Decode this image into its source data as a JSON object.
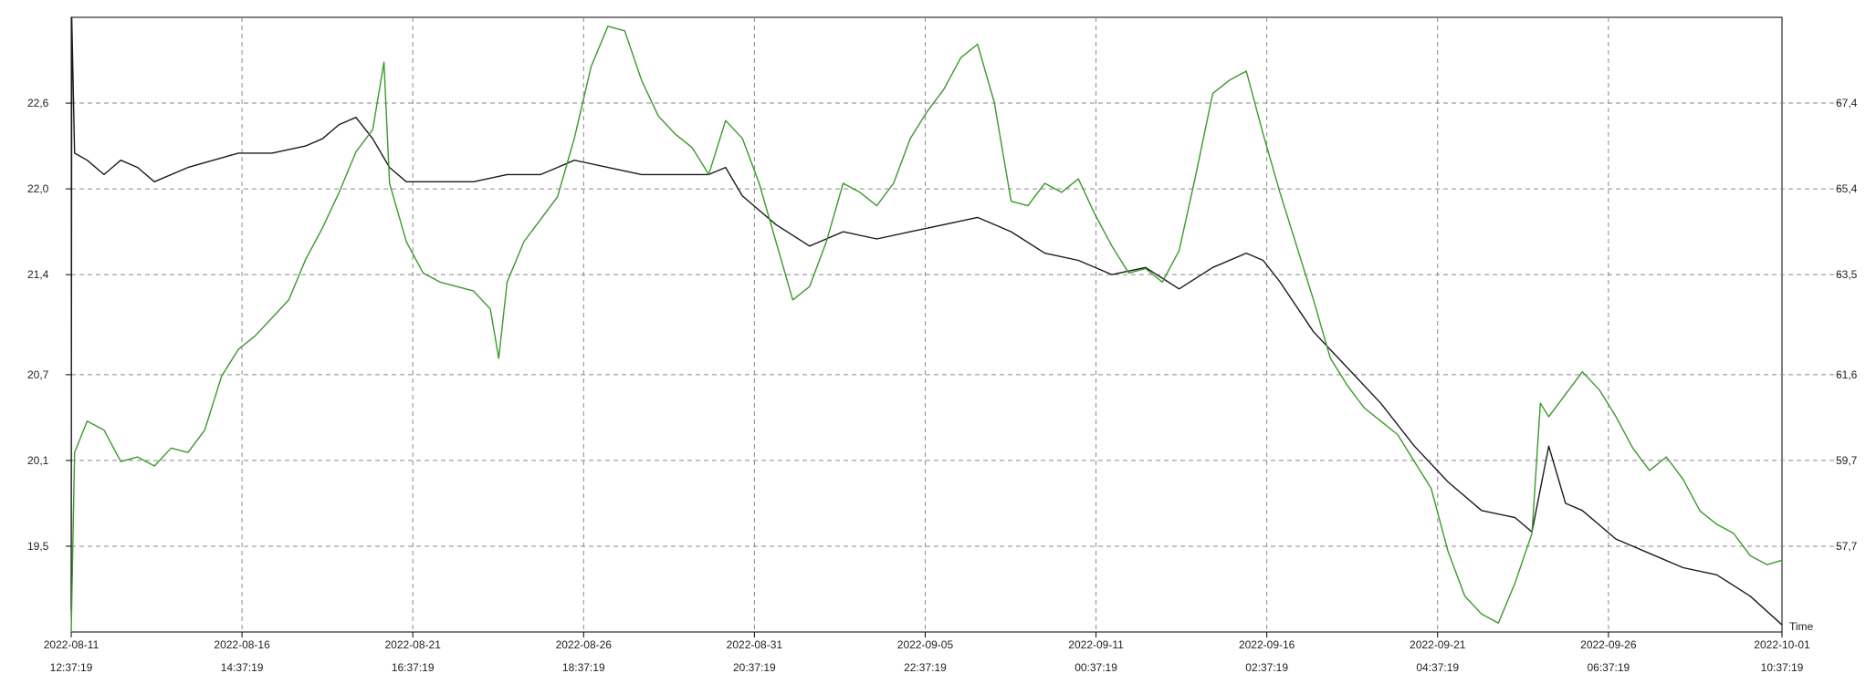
{
  "chart_data": {
    "type": "line",
    "xlabel": "Time",
    "x_ticks": [
      {
        "date": "2022-08-11",
        "time": "12:37:19"
      },
      {
        "date": "2022-08-16",
        "time": "14:37:19"
      },
      {
        "date": "2022-08-21",
        "time": "16:37:19"
      },
      {
        "date": "2022-08-26",
        "time": "18:37:19"
      },
      {
        "date": "2022-08-31",
        "time": "20:37:19"
      },
      {
        "date": "2022-09-05",
        "time": "22:37:19"
      },
      {
        "date": "2022-09-11",
        "time": "00:37:19"
      },
      {
        "date": "2022-09-16",
        "time": "02:37:19"
      },
      {
        "date": "2022-09-21",
        "time": "04:37:19"
      },
      {
        "date": "2022-09-26",
        "time": "06:37:19"
      },
      {
        "date": "2022-10-01",
        "time": "10:37:19"
      }
    ],
    "xlim": [
      "2022-08-11 12:37",
      "2022-10-01 10:37"
    ],
    "y_left_ticks": [
      "19,5",
      "20,1",
      "20,7",
      "21,4",
      "22,0",
      "22,6"
    ],
    "y_left_lim": [
      18.9,
      23.2
    ],
    "y_right_ticks": [
      "57,7",
      "59,7",
      "61,6",
      "63,5",
      "65,4",
      "67,4"
    ],
    "y_right_lim": [
      55.8,
      69.5
    ],
    "grid": true,
    "series": [
      {
        "axis": "left",
        "color": "#1a1a1a",
        "points": [
          [
            "2022-08-11 12:37",
            19.05
          ],
          [
            "2022-08-11 13:00",
            23.2
          ],
          [
            "2022-08-11 15:00",
            22.25
          ],
          [
            "2022-08-12 00:00",
            22.2
          ],
          [
            "2022-08-12 12:00",
            22.1
          ],
          [
            "2022-08-13 00:00",
            22.2
          ],
          [
            "2022-08-13 12:00",
            22.15
          ],
          [
            "2022-08-14 00:00",
            22.05
          ],
          [
            "2022-08-15 00:00",
            22.15
          ],
          [
            "2022-08-16 12:00",
            22.25
          ],
          [
            "2022-08-17 12:00",
            22.25
          ],
          [
            "2022-08-18 12:00",
            22.3
          ],
          [
            "2022-08-19 00:00",
            22.35
          ],
          [
            "2022-08-19 12:00",
            22.45
          ],
          [
            "2022-08-20 00:00",
            22.5
          ],
          [
            "2022-08-20 12:00",
            22.35
          ],
          [
            "2022-08-21 00:00",
            22.15
          ],
          [
            "2022-08-21 12:00",
            22.05
          ],
          [
            "2022-08-22 12:00",
            22.05
          ],
          [
            "2022-08-23 12:00",
            22.05
          ],
          [
            "2022-08-24 12:00",
            22.1
          ],
          [
            "2022-08-25 12:00",
            22.1
          ],
          [
            "2022-08-26 00:00",
            22.15
          ],
          [
            "2022-08-26 12:00",
            22.2
          ],
          [
            "2022-08-27 12:00",
            22.15
          ],
          [
            "2022-08-28 12:00",
            22.1
          ],
          [
            "2022-08-29 12:00",
            22.1
          ],
          [
            "2022-08-30 12:00",
            22.1
          ],
          [
            "2022-08-31 00:00",
            22.15
          ],
          [
            "2022-08-31 12:00",
            21.95
          ],
          [
            "2022-09-01 12:00",
            21.75
          ],
          [
            "2022-09-02 12:00",
            21.6
          ],
          [
            "2022-09-03 12:00",
            21.7
          ],
          [
            "2022-09-04 12:00",
            21.65
          ],
          [
            "2022-09-05 12:00",
            21.7
          ],
          [
            "2022-09-06 12:00",
            21.75
          ],
          [
            "2022-09-07 12:00",
            21.8
          ],
          [
            "2022-09-08 12:00",
            21.7
          ],
          [
            "2022-09-09 12:00",
            21.55
          ],
          [
            "2022-09-10 12:00",
            21.5
          ],
          [
            "2022-09-11 12:00",
            21.4
          ],
          [
            "2022-09-12 12:00",
            21.45
          ],
          [
            "2022-09-13 12:00",
            21.3
          ],
          [
            "2022-09-14 12:00",
            21.45
          ],
          [
            "2022-09-15 12:00",
            21.55
          ],
          [
            "2022-09-16 00:00",
            21.5
          ],
          [
            "2022-09-16 12:00",
            21.35
          ],
          [
            "2022-09-17 12:00",
            21.0
          ],
          [
            "2022-09-18 12:00",
            20.75
          ],
          [
            "2022-09-19 12:00",
            20.5
          ],
          [
            "2022-09-20 12:00",
            20.2
          ],
          [
            "2022-09-21 12:00",
            19.95
          ],
          [
            "2022-09-22 12:00",
            19.75
          ],
          [
            "2022-09-23 12:00",
            19.7
          ],
          [
            "2022-09-24 00:00",
            19.6
          ],
          [
            "2022-09-24 12:00",
            20.2
          ],
          [
            "2022-09-25 00:00",
            19.8
          ],
          [
            "2022-09-25 12:00",
            19.75
          ],
          [
            "2022-09-26 12:00",
            19.55
          ],
          [
            "2022-09-27 12:00",
            19.45
          ],
          [
            "2022-09-28 12:00",
            19.35
          ],
          [
            "2022-09-29 12:00",
            19.3
          ],
          [
            "2022-09-30 12:00",
            19.15
          ],
          [
            "2022-10-01 10:37",
            18.95
          ]
        ]
      },
      {
        "axis": "right",
        "color": "#3a9a2a",
        "points": [
          [
            "2022-08-11 12:37",
            55.8
          ],
          [
            "2022-08-11 15:00",
            59.8
          ],
          [
            "2022-08-12 00:00",
            60.5
          ],
          [
            "2022-08-12 12:00",
            60.3
          ],
          [
            "2022-08-13 00:00",
            59.6
          ],
          [
            "2022-08-13 12:00",
            59.7
          ],
          [
            "2022-08-14 00:00",
            59.5
          ],
          [
            "2022-08-14 12:00",
            59.9
          ],
          [
            "2022-08-15 00:00",
            59.8
          ],
          [
            "2022-08-15 12:00",
            60.3
          ],
          [
            "2022-08-16 00:00",
            61.5
          ],
          [
            "2022-08-16 12:00",
            62.1
          ],
          [
            "2022-08-17 00:00",
            62.4
          ],
          [
            "2022-08-17 12:00",
            62.8
          ],
          [
            "2022-08-18 00:00",
            63.2
          ],
          [
            "2022-08-18 12:00",
            64.1
          ],
          [
            "2022-08-19 00:00",
            64.8
          ],
          [
            "2022-08-19 12:00",
            65.6
          ],
          [
            "2022-08-20 00:00",
            66.5
          ],
          [
            "2022-08-20 12:00",
            67.0
          ],
          [
            "2022-08-20 20:00",
            68.5
          ],
          [
            "2022-08-21 00:00",
            65.8
          ],
          [
            "2022-08-21 12:00",
            64.5
          ],
          [
            "2022-08-22 00:00",
            63.8
          ],
          [
            "2022-08-22 12:00",
            63.6
          ],
          [
            "2022-08-23 00:00",
            63.5
          ],
          [
            "2022-08-23 12:00",
            63.4
          ],
          [
            "2022-08-24 00:00",
            63.0
          ],
          [
            "2022-08-24 06:00",
            61.9
          ],
          [
            "2022-08-24 12:00",
            63.6
          ],
          [
            "2022-08-25 00:00",
            64.5
          ],
          [
            "2022-08-25 12:00",
            65.0
          ],
          [
            "2022-08-26 00:00",
            65.5
          ],
          [
            "2022-08-26 12:00",
            66.8
          ],
          [
            "2022-08-27 00:00",
            68.4
          ],
          [
            "2022-08-27 12:00",
            69.3
          ],
          [
            "2022-08-28 00:00",
            69.2
          ],
          [
            "2022-08-28 12:00",
            68.1
          ],
          [
            "2022-08-29 00:00",
            67.3
          ],
          [
            "2022-08-29 12:00",
            66.9
          ],
          [
            "2022-08-30 00:00",
            66.6
          ],
          [
            "2022-08-30 12:00",
            66.0
          ],
          [
            "2022-08-31 00:00",
            67.2
          ],
          [
            "2022-08-31 12:00",
            66.8
          ],
          [
            "2022-09-01 00:00",
            65.8
          ],
          [
            "2022-09-01 12:00",
            64.5
          ],
          [
            "2022-09-02 00:00",
            63.2
          ],
          [
            "2022-09-02 12:00",
            63.5
          ],
          [
            "2022-09-03 00:00",
            64.5
          ],
          [
            "2022-09-03 12:00",
            65.8
          ],
          [
            "2022-09-04 00:00",
            65.6
          ],
          [
            "2022-09-04 12:00",
            65.3
          ],
          [
            "2022-09-05 00:00",
            65.8
          ],
          [
            "2022-09-05 12:00",
            66.8
          ],
          [
            "2022-09-06 00:00",
            67.4
          ],
          [
            "2022-09-06 12:00",
            67.9
          ],
          [
            "2022-09-07 00:00",
            68.6
          ],
          [
            "2022-09-07 12:00",
            68.9
          ],
          [
            "2022-09-08 00:00",
            67.6
          ],
          [
            "2022-09-08 12:00",
            65.4
          ],
          [
            "2022-09-09 00:00",
            65.3
          ],
          [
            "2022-09-09 12:00",
            65.8
          ],
          [
            "2022-09-10 00:00",
            65.6
          ],
          [
            "2022-09-10 12:00",
            65.9
          ],
          [
            "2022-09-11 00:00",
            65.1
          ],
          [
            "2022-09-11 12:00",
            64.4
          ],
          [
            "2022-09-12 00:00",
            63.8
          ],
          [
            "2022-09-12 12:00",
            63.9
          ],
          [
            "2022-09-13 00:00",
            63.6
          ],
          [
            "2022-09-13 12:00",
            64.3
          ],
          [
            "2022-09-14 00:00",
            66.0
          ],
          [
            "2022-09-14 12:00",
            67.8
          ],
          [
            "2022-09-15 00:00",
            68.1
          ],
          [
            "2022-09-15 12:00",
            68.3
          ],
          [
            "2022-09-16 00:00",
            66.9
          ],
          [
            "2022-09-16 12:00",
            65.6
          ],
          [
            "2022-09-17 00:00",
            64.4
          ],
          [
            "2022-09-17 12:00",
            63.2
          ],
          [
            "2022-09-18 00:00",
            61.9
          ],
          [
            "2022-09-18 12:00",
            61.3
          ],
          [
            "2022-09-19 00:00",
            60.8
          ],
          [
            "2022-09-19 12:00",
            60.5
          ],
          [
            "2022-09-20 00:00",
            60.2
          ],
          [
            "2022-09-20 12:00",
            59.6
          ],
          [
            "2022-09-21 00:00",
            59.0
          ],
          [
            "2022-09-21 12:00",
            57.6
          ],
          [
            "2022-09-22 00:00",
            56.6
          ],
          [
            "2022-09-22 12:00",
            56.2
          ],
          [
            "2022-09-23 00:00",
            56.0
          ],
          [
            "2022-09-23 12:00",
            56.9
          ],
          [
            "2022-09-24 00:00",
            58.0
          ],
          [
            "2022-09-24 06:00",
            60.9
          ],
          [
            "2022-09-24 12:00",
            60.6
          ],
          [
            "2022-09-25 00:00",
            61.1
          ],
          [
            "2022-09-25 12:00",
            61.6
          ],
          [
            "2022-09-26 00:00",
            61.2
          ],
          [
            "2022-09-26 12:00",
            60.6
          ],
          [
            "2022-09-27 00:00",
            59.9
          ],
          [
            "2022-09-27 12:00",
            59.4
          ],
          [
            "2022-09-28 00:00",
            59.7
          ],
          [
            "2022-09-28 12:00",
            59.2
          ],
          [
            "2022-09-29 00:00",
            58.5
          ],
          [
            "2022-09-29 12:00",
            58.2
          ],
          [
            "2022-09-30 00:00",
            58.0
          ],
          [
            "2022-09-30 12:00",
            57.5
          ],
          [
            "2022-10-01 00:00",
            57.3
          ],
          [
            "2022-10-01 10:37",
            57.4
          ]
        ]
      }
    ]
  }
}
